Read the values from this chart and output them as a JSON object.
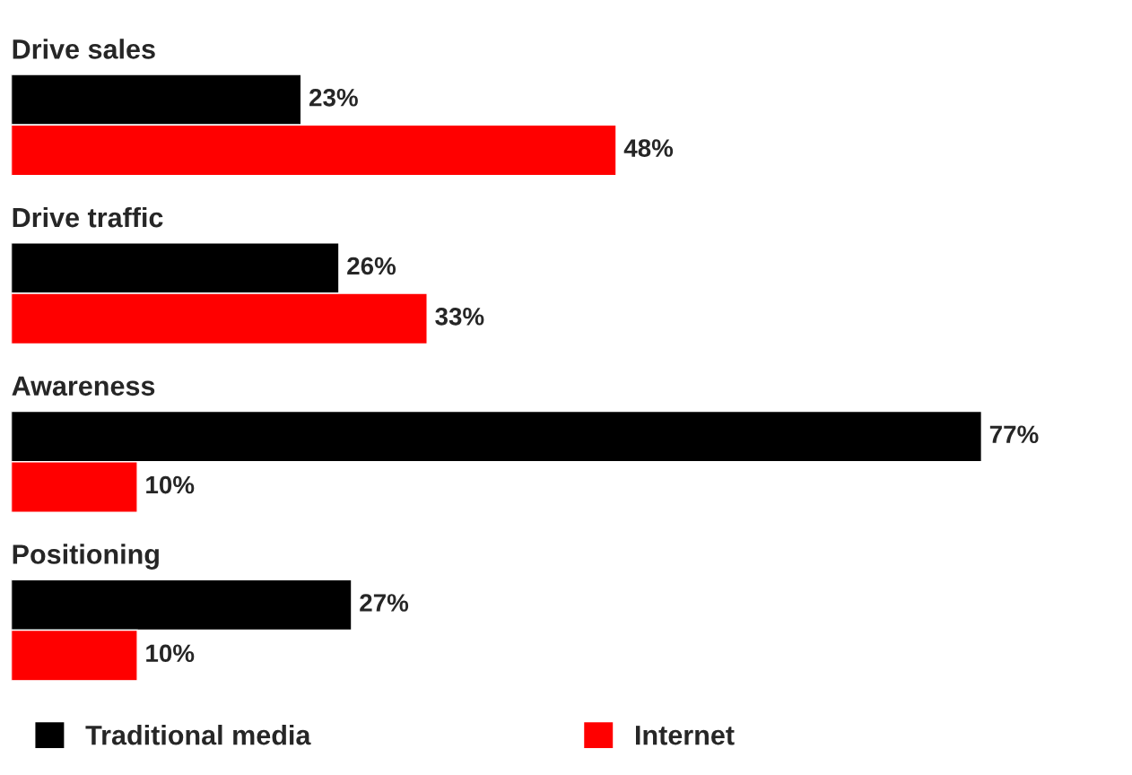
{
  "chart_data": {
    "type": "bar",
    "orientation": "horizontal",
    "categories": [
      "Drive sales",
      "Drive traffic",
      "Awareness",
      "Positioning"
    ],
    "series": [
      {
        "name": "Traditional media",
        "color": "#000000",
        "values": [
          23,
          26,
          77,
          27
        ],
        "value_labels": [
          "23%",
          "26%",
          "77%",
          "27%"
        ]
      },
      {
        "name": "Internet",
        "color": "#ff0000",
        "values": [
          48,
          33,
          10,
          10
        ],
        "value_labels": [
          "48%",
          "33%",
          "10%",
          "10%"
        ]
      }
    ],
    "legend": "bottom"
  }
}
